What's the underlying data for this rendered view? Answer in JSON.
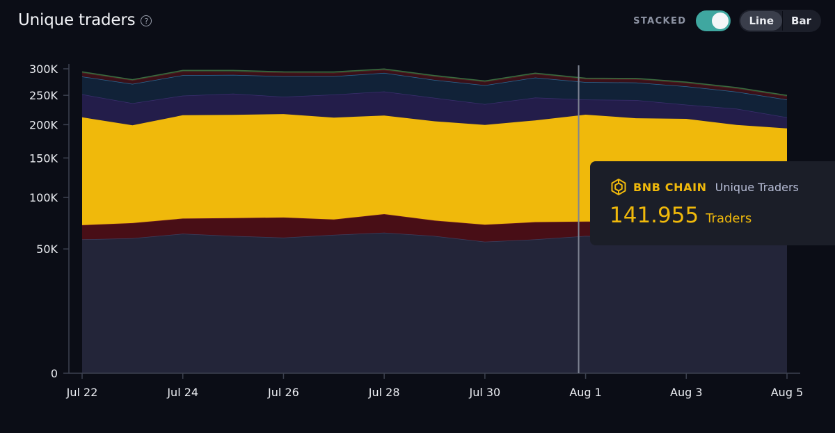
{
  "header": {
    "title": "Unique traders",
    "help_icon": "question-circle-icon"
  },
  "controls": {
    "stacked_label": "STACKED",
    "stacked_on": true,
    "line_label": "Line",
    "bar_label": "Bar",
    "active_view": "Line"
  },
  "tooltip": {
    "chain": "BNB CHAIN",
    "metric": "Unique Traders",
    "value": "141.955",
    "unit": "Traders",
    "icon": "bnb-chain-icon",
    "date": "Aug 1"
  },
  "colors": {
    "background": "#0b0d16",
    "accent": "#3fa7a0",
    "bnb": "#f0b90b"
  },
  "chart_data": {
    "type": "area",
    "stacked": true,
    "y_scale": "sqrt",
    "ylim": [
      0,
      300000
    ],
    "yticks": [
      0,
      50000,
      100000,
      150000,
      200000,
      250000,
      300000
    ],
    "ytick_labels": [
      "0",
      "50K",
      "100K",
      "150K",
      "200K",
      "250K",
      "300K"
    ],
    "x": [
      "Jul 22",
      "Jul 23",
      "Jul 24",
      "Jul 25",
      "Jul 26",
      "Jul 27",
      "Jul 28",
      "Jul 29",
      "Jul 30",
      "Jul 31",
      "Aug 1",
      "Aug 2",
      "Aug 3",
      "Aug 4",
      "Aug 5"
    ],
    "xtick_labels": [
      "Jul 22",
      "Jul 24",
      "Jul 26",
      "Jul 28",
      "Jul 30",
      "Aug 1",
      "Aug 3",
      "Aug 5"
    ],
    "crosshair_x": "Aug 1",
    "series": [
      {
        "color": "#232539",
        "line": "#3c3f5e",
        "values": [
          58000,
          59000,
          63000,
          61000,
          59500,
          62000,
          64000,
          61000,
          56000,
          58000,
          61000,
          60500,
          60000,
          59500,
          59000
        ]
      },
      {
        "color": "#480e16",
        "line": "#6b1a24",
        "values": [
          13000,
          14000,
          14500,
          17000,
          19000,
          14500,
          18000,
          14500,
          15500,
          16000,
          13500,
          14000,
          14000,
          13500,
          13500
        ]
      },
      {
        "color": "#f0b90b",
        "line": "#f0b90b",
        "values": [
          141000,
          126000,
          138000,
          138000,
          139000,
          135000,
          133000,
          130000,
          128000,
          133000,
          141955,
          136000,
          135500,
          126500,
          121500
        ]
      },
      {
        "color": "#231d4a",
        "line": "#3a2f6e",
        "values": [
          40000,
          37000,
          34000,
          37000,
          30000,
          40000,
          42000,
          40000,
          35000,
          39000,
          26000,
          31000,
          24000,
          27000,
          18000
        ]
      },
      {
        "color": "#112238",
        "line": "#2d6a96",
        "values": [
          33000,
          35000,
          38000,
          35000,
          38000,
          34000,
          35000,
          33000,
          34000,
          37000,
          32000,
          32000,
          33000,
          30000,
          30500
        ]
      },
      {
        "color": "#3a1018",
        "line": "#5a1f26",
        "values": [
          7500,
          6800,
          7500,
          6500,
          7000,
          6500,
          6000,
          6800,
          6500,
          7000,
          6000,
          6500,
          6500,
          6300,
          6000
        ]
      },
      {
        "color": "#1f3a24",
        "line": "#3b6b3f",
        "values": [
          1500,
          1200,
          1800,
          2500,
          1500,
          1800,
          1700,
          1600,
          1500,
          1500,
          1300,
          1400,
          1400,
          1400,
          1300
        ]
      }
    ]
  }
}
